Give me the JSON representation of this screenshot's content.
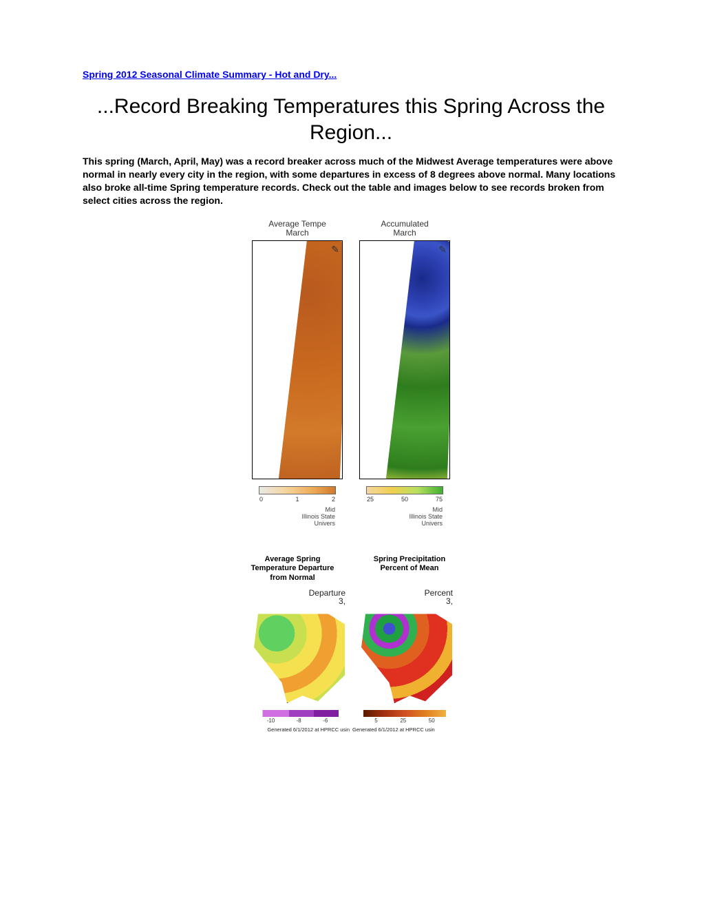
{
  "link_text": "Spring 2012 Seasonal Climate Summary - Hot and Dry...",
  "main_title": "...Record Breaking Temperatures this Spring Across the Region...",
  "intro": "This spring (March, April, May) was a record breaker across much of the Midwest Average temperatures were above normal in nearly every city in the region, with some departures in excess of 8 degrees above normal. Many locations also broke all-time Spring temperature records. Check out the table and images below to see records broken from select cities across the region.",
  "row1": {
    "left": {
      "title": "Average  Tempe\nMarch",
      "legend_ticks": [
        "0",
        "1",
        "2"
      ],
      "attr": "Mid\nIllinois  State\nUnivers"
    },
    "right": {
      "title": "Accumulated\nMarch",
      "legend_ticks": [
        "25",
        "50",
        "75"
      ],
      "attr": "Mid\nIllinois  State\nUnivers"
    }
  },
  "col_labels": {
    "left": "Average Spring Temperature Departure from Normal",
    "right": "Spring Precipitation Percent of Mean"
  },
  "row2": {
    "left": {
      "title": "Departure\n3,",
      "legend_ticks": [
        "-10",
        "-8",
        "-6"
      ],
      "gen": "Generated 6/1/2012 at HPRCC usin"
    },
    "right": {
      "title": "Percent\n3,",
      "legend_ticks": [
        "5",
        "25",
        "50"
      ],
      "gen": "Generated 6/1/2012 at HPRCC usin"
    }
  },
  "colors": {
    "link": "#0000ee",
    "text": "#000000"
  }
}
